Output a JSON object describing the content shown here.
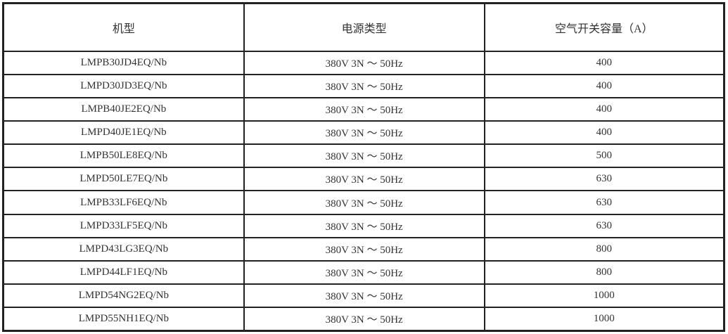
{
  "table": {
    "headers": [
      "机型",
      "电源类型",
      "空气开关容量（A）"
    ],
    "rows": [
      [
        "LMPB30JD4EQ/Nb",
        "380V 3N ～ 50Hz",
        "400"
      ],
      [
        "LMPD30JD3EQ/Nb",
        "380V 3N ～ 50Hz",
        "400"
      ],
      [
        "LMPB40JE2EQ/Nb",
        "380V 3N ～ 50Hz",
        "400"
      ],
      [
        "LMPD40JE1EQ/Nb",
        "380V 3N ～ 50Hz",
        "400"
      ],
      [
        "LMPB50LE8EQ/Nb",
        "380V 3N ～ 50Hz",
        "500"
      ],
      [
        "LMPD50LE7EQ/Nb",
        "380V 3N ～ 50Hz",
        "630"
      ],
      [
        "LMPB33LF6EQ/Nb",
        "380V 3N ～ 50Hz",
        "630"
      ],
      [
        "LMPD33LF5EQ/Nb",
        "380V 3N ～ 50Hz",
        "630"
      ],
      [
        "LMPD43LG3EQ/Nb",
        "380V 3N ～ 50Hz",
        "800"
      ],
      [
        "LMPD44LF1EQ/Nb",
        "380V 3N ～ 50Hz",
        "800"
      ],
      [
        "LMPD54NG2EQ/Nb",
        "380V 3N ～ 50Hz",
        "1000"
      ],
      [
        "LMPD55NH1EQ/Nb",
        "380V 3N ～ 50Hz",
        "1000"
      ]
    ]
  }
}
